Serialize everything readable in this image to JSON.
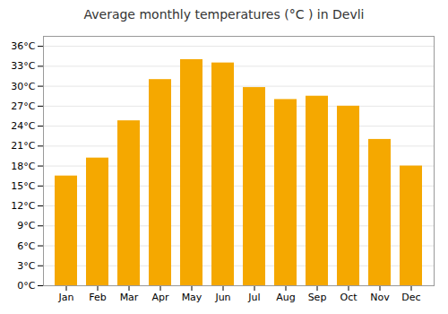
{
  "chart_data": {
    "type": "bar",
    "title": "Average monthly temperatures (°C ) in Devli",
    "categories": [
      "Jan",
      "Feb",
      "Mar",
      "Apr",
      "May",
      "Jun",
      "Jul",
      "Aug",
      "Sep",
      "Oct",
      "Nov",
      "Dec"
    ],
    "values": [
      16.5,
      19.2,
      24.8,
      31.0,
      34.0,
      33.5,
      29.8,
      28.0,
      28.5,
      27.0,
      22.0,
      18.0
    ],
    "color": "#F5A800",
    "ylim": [
      0,
      37.5
    ],
    "yticks": [
      {
        "value": 0,
        "label": "0°C"
      },
      {
        "value": 3,
        "label": "3°C"
      },
      {
        "value": 6,
        "label": "6°C"
      },
      {
        "value": 9,
        "label": "9°C"
      },
      {
        "value": 12,
        "label": "12°C"
      },
      {
        "value": 15,
        "label": "15°C"
      },
      {
        "value": 18,
        "label": "18°C"
      },
      {
        "value": 21,
        "label": "21°C"
      },
      {
        "value": 24,
        "label": "24°C"
      },
      {
        "value": 27,
        "label": "27°C"
      },
      {
        "value": 30,
        "label": "30°C"
      },
      {
        "value": 33,
        "label": "33°C"
      },
      {
        "value": 36,
        "label": "36°C"
      }
    ],
    "grid": true
  }
}
